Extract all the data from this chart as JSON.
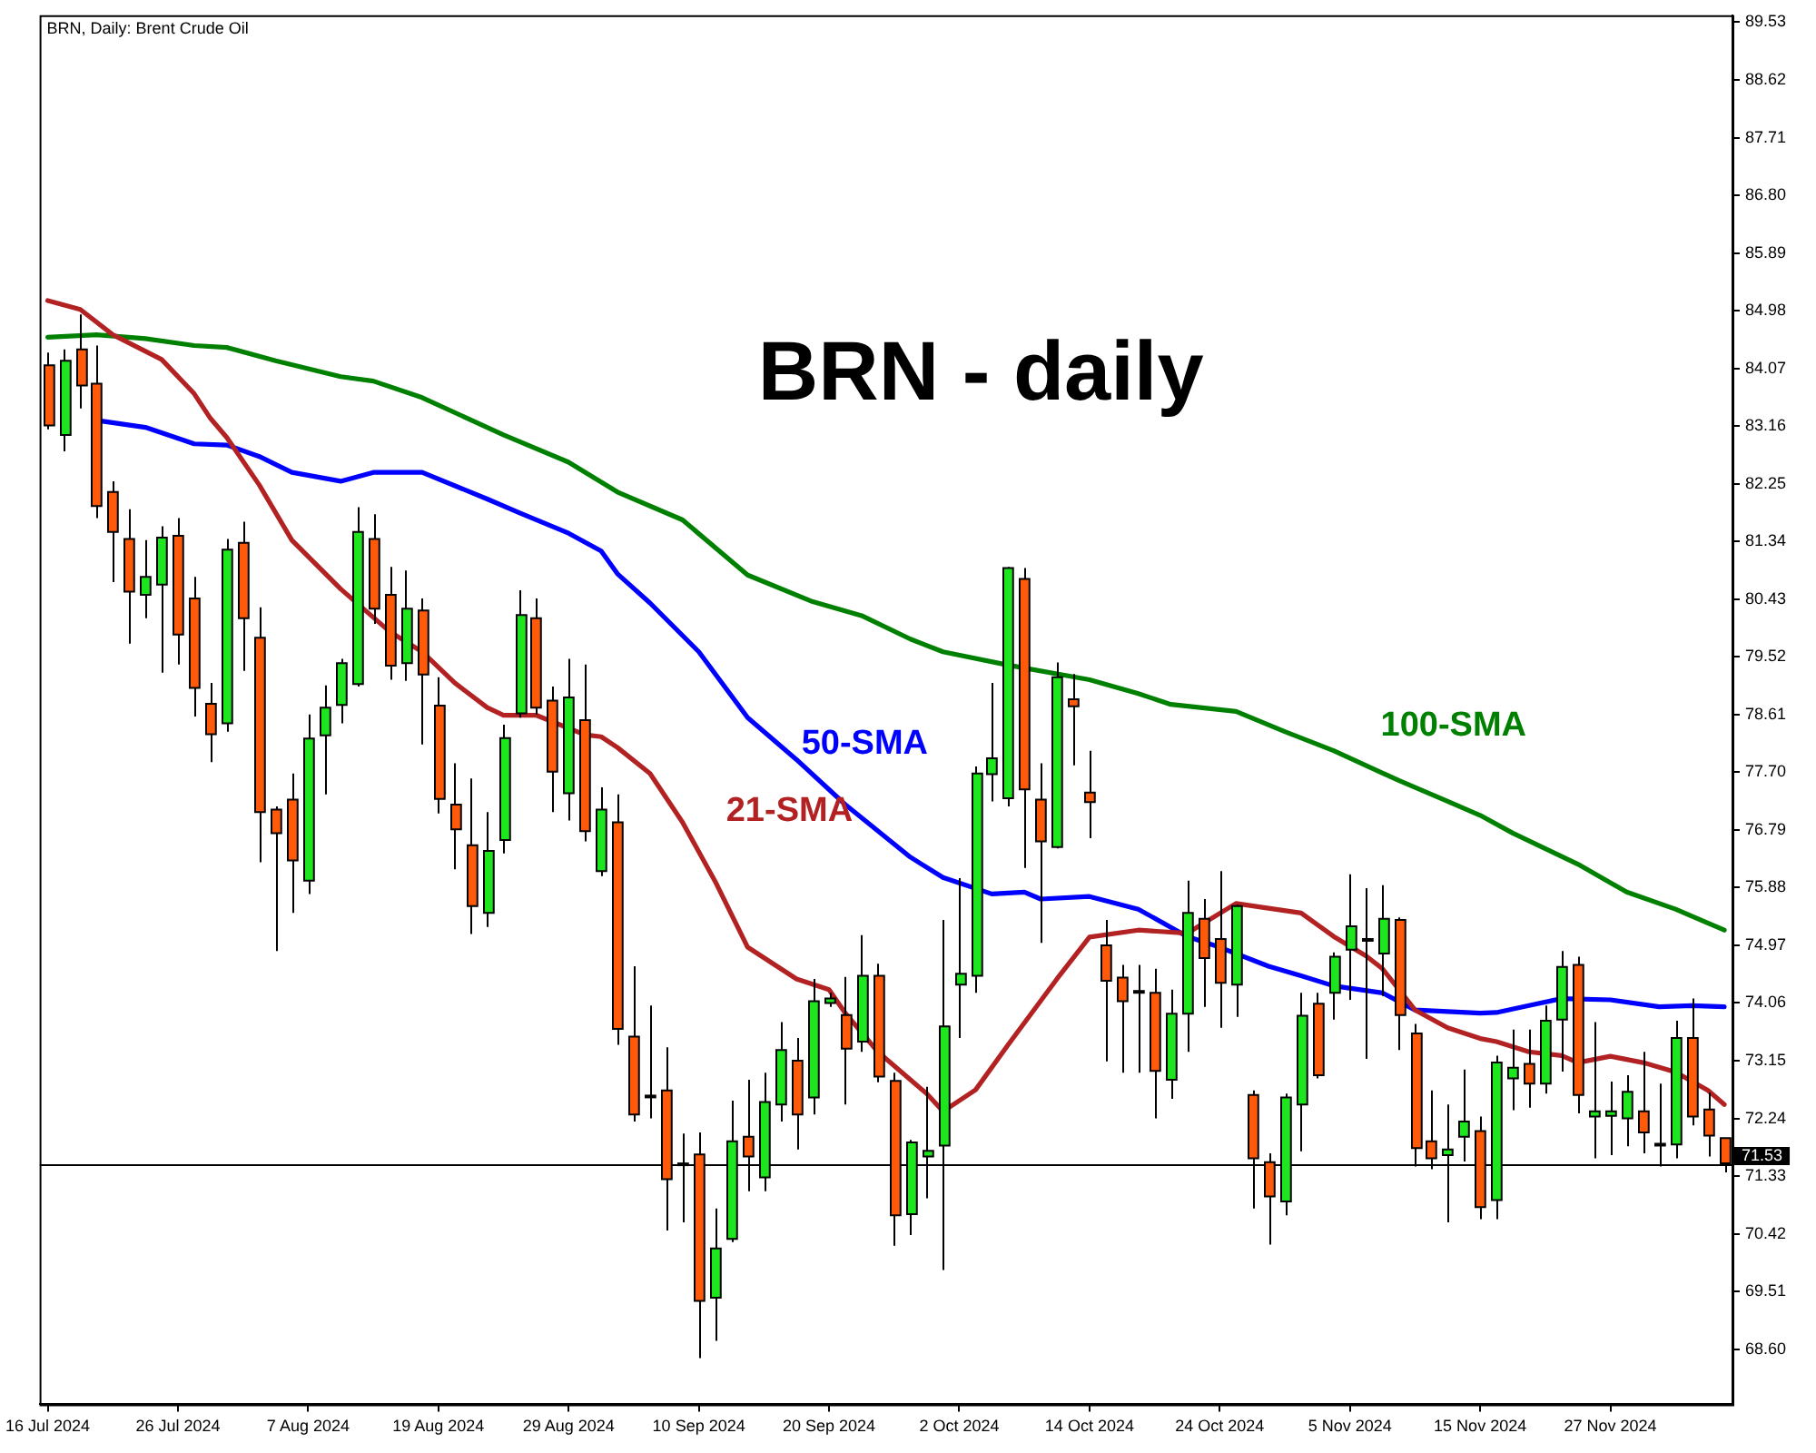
{
  "chart_data": {
    "type": "candlestick",
    "title": "BRN - daily",
    "subtitle": "BRN, Daily: Brent Crude Oil",
    "categories": [
      "16 Jul 2024",
      null,
      null,
      null,
      null,
      null,
      null,
      null,
      "26 Jul 2024",
      null,
      null,
      null,
      null,
      null,
      null,
      null,
      "7 Aug 2024",
      null,
      null,
      null,
      null,
      null,
      null,
      null,
      "19 Aug 2024",
      null,
      null,
      null,
      null,
      null,
      null,
      null,
      "29 Aug 2024",
      null,
      null,
      null,
      null,
      null,
      null,
      null,
      "10 Sep 2024",
      null,
      null,
      null,
      null,
      null,
      null,
      null,
      "20 Sep 2024",
      null,
      null,
      null,
      null,
      null,
      null,
      null,
      "2 Oct 2024",
      null,
      null,
      null,
      null,
      null,
      null,
      null,
      "14 Oct 2024",
      null,
      null,
      null,
      null,
      null,
      null,
      null,
      "24 Oct 2024",
      null,
      null,
      null,
      null,
      null,
      null,
      null,
      "5 Nov 2024",
      null,
      null,
      null,
      null,
      null,
      null,
      null,
      "15 Nov 2024",
      null,
      null,
      null,
      null,
      null,
      null,
      null,
      "27 Nov 2024",
      null,
      null,
      null,
      null,
      null,
      null,
      null
    ],
    "ohlc": [
      [
        84.12,
        84.32,
        83.11,
        83.17
      ],
      [
        83.02,
        84.37,
        82.76,
        84.19
      ],
      [
        84.37,
        84.92,
        83.44,
        83.8
      ],
      [
        83.83,
        84.43,
        81.71,
        81.9
      ],
      [
        82.12,
        82.29,
        80.7,
        81.49
      ],
      [
        81.38,
        81.85,
        79.73,
        80.55
      ],
      [
        80.5,
        81.36,
        80.13,
        80.78
      ],
      [
        80.66,
        81.58,
        79.27,
        81.4
      ],
      [
        81.43,
        81.71,
        79.4,
        79.87
      ],
      [
        80.44,
        80.78,
        78.58,
        79.03
      ],
      [
        78.78,
        79.11,
        77.86,
        78.3
      ],
      [
        78.47,
        81.38,
        78.34,
        81.21
      ],
      [
        81.32,
        81.65,
        79.3,
        80.13
      ],
      [
        79.82,
        80.3,
        76.28,
        77.07
      ],
      [
        77.11,
        77.16,
        74.88,
        76.74
      ],
      [
        77.27,
        77.68,
        75.48,
        76.31
      ],
      [
        75.99,
        78.61,
        75.78,
        78.23
      ],
      [
        78.28,
        79.07,
        77.35,
        78.72
      ],
      [
        78.76,
        79.49,
        78.47,
        79.42
      ],
      [
        79.09,
        81.88,
        79.05,
        81.49
      ],
      [
        81.38,
        81.77,
        80.04,
        80.28
      ],
      [
        80.5,
        80.94,
        79.16,
        79.38
      ],
      [
        79.42,
        80.88,
        79.14,
        80.28
      ],
      [
        80.25,
        80.44,
        78.14,
        79.24
      ],
      [
        78.75,
        79.2,
        77.05,
        77.28
      ],
      [
        77.19,
        77.84,
        76.17,
        76.8
      ],
      [
        76.55,
        77.6,
        75.15,
        75.59
      ],
      [
        75.48,
        77.07,
        75.26,
        76.46
      ],
      [
        76.63,
        78.45,
        76.42,
        78.24
      ],
      [
        78.63,
        80.57,
        78.56,
        80.18
      ],
      [
        80.13,
        80.44,
        78.61,
        78.72
      ],
      [
        78.83,
        79.05,
        77.07,
        77.71
      ],
      [
        77.37,
        79.49,
        76.94,
        78.88
      ],
      [
        78.52,
        79.4,
        76.61,
        76.77
      ],
      [
        76.14,
        77.46,
        76.06,
        77.11
      ],
      [
        76.91,
        77.35,
        73.4,
        73.65
      ],
      [
        73.53,
        74.64,
        72.19,
        72.3
      ],
      [
        72.6,
        74.02,
        72.24,
        72.59
      ],
      [
        72.68,
        73.36,
        70.47,
        71.28
      ],
      [
        71.53,
        72.0,
        70.6,
        71.52
      ],
      [
        71.67,
        72.02,
        68.46,
        69.36
      ],
      [
        69.41,
        70.82,
        68.73,
        70.19
      ],
      [
        70.34,
        72.52,
        70.29,
        71.88
      ],
      [
        71.95,
        72.85,
        71.09,
        71.64
      ],
      [
        71.31,
        72.96,
        71.09,
        72.5
      ],
      [
        72.46,
        73.76,
        72.19,
        73.32
      ],
      [
        73.15,
        73.51,
        71.75,
        72.3
      ],
      [
        72.57,
        74.44,
        72.3,
        74.09
      ],
      [
        74.06,
        74.22,
        74.0,
        74.13
      ],
      [
        73.87,
        74.47,
        72.46,
        73.34
      ],
      [
        73.45,
        75.13,
        73.29,
        74.49
      ],
      [
        74.49,
        74.68,
        72.81,
        72.9
      ],
      [
        72.83,
        72.96,
        70.23,
        70.71
      ],
      [
        70.73,
        71.9,
        70.4,
        71.86
      ],
      [
        71.64,
        72.74,
        70.98,
        71.73
      ],
      [
        71.81,
        75.37,
        69.85,
        73.69
      ],
      [
        74.35,
        76.03,
        73.51,
        74.52
      ],
      [
        74.49,
        77.79,
        74.22,
        77.68
      ],
      [
        77.67,
        79.11,
        77.24,
        77.92
      ],
      [
        77.29,
        80.94,
        77.16,
        80.92
      ],
      [
        80.75,
        80.92,
        76.19,
        77.43
      ],
      [
        77.27,
        77.84,
        75.01,
        76.61
      ],
      [
        76.52,
        79.43,
        76.5,
        79.2
      ],
      [
        78.85,
        79.25,
        77.81,
        78.74
      ],
      [
        77.38,
        78.04,
        76.66,
        77.23
      ],
      [
        74.97,
        75.37,
        73.14,
        74.41
      ],
      [
        74.46,
        74.66,
        72.96,
        74.09
      ],
      [
        74.25,
        74.66,
        72.96,
        74.24
      ],
      [
        74.22,
        74.6,
        72.24,
        72.99
      ],
      [
        72.85,
        74.27,
        72.55,
        73.89
      ],
      [
        73.89,
        75.99,
        73.29,
        75.48
      ],
      [
        75.39,
        75.7,
        74.0,
        74.77
      ],
      [
        75.07,
        76.14,
        73.67,
        74.38
      ],
      [
        74.35,
        75.61,
        73.84,
        75.59
      ],
      [
        72.61,
        72.68,
        70.82,
        71.61
      ],
      [
        71.55,
        71.69,
        70.25,
        71.01
      ],
      [
        70.93,
        72.63,
        70.71,
        72.57
      ],
      [
        72.46,
        74.22,
        71.72,
        73.86
      ],
      [
        74.05,
        74.22,
        72.87,
        72.92
      ],
      [
        74.22,
        74.86,
        73.8,
        74.79
      ],
      [
        74.9,
        76.09,
        74.11,
        75.27
      ],
      [
        75.07,
        75.87,
        73.18,
        75.06
      ],
      [
        74.84,
        75.92,
        74.17,
        75.39
      ],
      [
        75.37,
        75.41,
        73.32,
        73.87
      ],
      [
        73.58,
        73.73,
        71.48,
        71.77
      ],
      [
        71.88,
        72.68,
        71.44,
        71.61
      ],
      [
        71.66,
        72.46,
        70.6,
        71.75
      ],
      [
        71.95,
        73.01,
        71.56,
        72.19
      ],
      [
        72.04,
        72.27,
        70.65,
        70.84
      ],
      [
        70.95,
        73.23,
        70.65,
        73.12
      ],
      [
        72.87,
        73.64,
        72.37,
        73.04
      ],
      [
        73.1,
        73.64,
        72.41,
        72.79
      ],
      [
        72.79,
        74.02,
        72.63,
        73.78
      ],
      [
        73.8,
        74.88,
        72.98,
        74.63
      ],
      [
        74.66,
        74.79,
        72.32,
        72.61
      ],
      [
        72.27,
        73.76,
        71.61,
        72.35
      ],
      [
        72.28,
        72.82,
        71.66,
        72.35
      ],
      [
        72.24,
        72.92,
        71.8,
        72.66
      ],
      [
        72.35,
        73.29,
        71.69,
        72.02
      ],
      [
        71.84,
        72.79,
        71.48,
        71.83
      ],
      [
        71.83,
        73.78,
        71.61,
        73.51
      ],
      [
        73.51,
        74.13,
        72.13,
        72.27
      ],
      [
        72.38,
        72.65,
        71.64,
        71.97
      ],
      [
        71.93,
        71.93,
        71.39,
        71.53
      ]
    ],
    "colors": [
      "#ff5a0a",
      "#1ee61e",
      "#ff5a0a",
      "#ff5a0a",
      "#ff5a0a",
      "#ff5a0a",
      "#1ee61e",
      "#1ee61e",
      "#ff5a0a",
      "#ff5a0a",
      "#ff5a0a",
      "#1ee61e",
      "#ff5a0a",
      "#ff5a0a",
      "#ff5a0a",
      "#ff5a0a",
      "#1ee61e",
      "#1ee61e",
      "#1ee61e",
      "#1ee61e",
      "#ff5a0a",
      "#ff5a0a",
      "#1ee61e",
      "#ff5a0a",
      "#ff5a0a",
      "#ff5a0a",
      "#ff5a0a",
      "#1ee61e",
      "#1ee61e",
      "#1ee61e",
      "#ff5a0a",
      "#ff5a0a",
      "#1ee61e",
      "#ff5a0a",
      "#1ee61e",
      "#ff5a0a",
      "#ff5a0a",
      "#ff5a0a",
      "#ff5a0a",
      "#ff5a0a",
      "#ff5a0a",
      "#1ee61e",
      "#1ee61e",
      "#ff5a0a",
      "#1ee61e",
      "#1ee61e",
      "#ff5a0a",
      "#1ee61e",
      "#1ee61e",
      "#ff5a0a",
      "#1ee61e",
      "#ff5a0a",
      "#ff5a0a",
      "#1ee61e",
      "#1ee61e",
      "#1ee61e",
      "#1ee61e",
      "#1ee61e",
      "#1ee61e",
      "#1ee61e",
      "#ff5a0a",
      "#ff5a0a",
      "#1ee61e",
      "#ff5a0a",
      "#ff5a0a",
      "#ff5a0a",
      "#ff5a0a",
      "#ff5a0a",
      "#ff5a0a",
      "#1ee61e",
      "#1ee61e",
      "#ff5a0a",
      "#ff5a0a",
      "#1ee61e",
      "#ff5a0a",
      "#ff5a0a",
      "#1ee61e",
      "#1ee61e",
      "#ff5a0a",
      "#1ee61e",
      "#1ee61e",
      "#ff5a0a",
      "#1ee61e",
      "#ff5a0a",
      "#ff5a0a",
      "#ff5a0a",
      "#1ee61e",
      "#1ee61e",
      "#ff5a0a",
      "#1ee61e",
      "#1ee61e",
      "#ff5a0a",
      "#1ee61e",
      "#1ee61e",
      "#ff5a0a",
      "#1ee61e",
      "#1ee61e",
      "#1ee61e",
      "#ff5a0a",
      "#ff5a0a",
      "#1ee61e",
      "#ff5a0a",
      "#ff5a0a",
      "#ff5a0a"
    ],
    "series": [
      {
        "name": "21-SMA",
        "type": "line",
        "color": "#b22222",
        "values": [
          85.14,
          null,
          85.0,
          null,
          84.6,
          null,
          null,
          84.21,
          null,
          83.67,
          83.28,
          82.98,
          null,
          82.23,
          null,
          81.36,
          null,
          null,
          80.59,
          null,
          null,
          79.92,
          null,
          79.6,
          null,
          79.11,
          null,
          78.72,
          78.6,
          null,
          78.6,
          null,
          null,
          78.29,
          78.26,
          78.09,
          null,
          77.68,
          null,
          76.91,
          null,
          75.98,
          null,
          74.94,
          null,
          null,
          74.44,
          null,
          74.27,
          73.9,
          null,
          73.29,
          null,
          72.85,
          72.63,
          72.35,
          null,
          72.69,
          null,
          73.4,
          null,
          null,
          74.44,
          null,
          75.1,
          null,
          null,
          75.21,
          null,
          null,
          75.16,
          null,
          null,
          75.63,
          null,
          null,
          null,
          75.48,
          null,
          75.11,
          null,
          74.8,
          74.6,
          null,
          73.95,
          null,
          73.67,
          null,
          73.5,
          73.45,
          null,
          73.29,
          null,
          73.23,
          73.12,
          null,
          73.22,
          null,
          73.12,
          null,
          72.97,
          null,
          72.68,
          72.46
        ]
      },
      {
        "name": "50-SMA",
        "type": "line",
        "color": "#0000ff",
        "values": [
          null,
          null,
          null,
          83.25,
          null,
          null,
          83.14,
          null,
          null,
          82.88,
          null,
          82.86,
          null,
          82.68,
          null,
          82.43,
          null,
          null,
          82.29,
          null,
          82.43,
          null,
          null,
          82.43,
          null,
          null,
          null,
          82.01,
          null,
          81.79,
          null,
          null,
          81.47,
          null,
          81.19,
          80.83,
          null,
          80.37,
          null,
          null,
          79.6,
          null,
          null,
          78.56,
          null,
          null,
          77.9,
          null,
          null,
          77.19,
          null,
          null,
          null,
          76.36,
          null,
          76.04,
          null,
          null,
          75.78,
          null,
          75.81,
          75.7,
          null,
          null,
          75.74,
          null,
          null,
          75.54,
          null,
          null,
          75.11,
          null,
          74.94,
          null,
          null,
          74.64,
          null,
          74.49,
          null,
          74.33,
          null,
          null,
          74.22,
          null,
          73.95,
          null,
          null,
          null,
          73.9,
          73.91,
          null,
          74.02,
          null,
          74.13,
          null,
          null,
          74.11,
          null,
          null,
          74.0,
          null,
          74.02,
          null,
          74.0
        ]
      },
      {
        "name": "100-SMA",
        "type": "line",
        "color": "#008000",
        "values": [
          84.56,
          null,
          null,
          84.6,
          null,
          null,
          84.54,
          null,
          null,
          84.43,
          null,
          84.4,
          null,
          null,
          84.19,
          null,
          null,
          null,
          83.94,
          null,
          83.87,
          null,
          null,
          83.61,
          null,
          null,
          null,
          null,
          83.02,
          null,
          null,
          null,
          82.59,
          null,
          null,
          82.12,
          null,
          null,
          null,
          81.68,
          null,
          null,
          null,
          80.81,
          null,
          null,
          null,
          80.39,
          null,
          null,
          80.17,
          null,
          null,
          79.8,
          null,
          79.6,
          null,
          null,
          null,
          79.39,
          null,
          null,
          null,
          null,
          79.16,
          null,
          null,
          78.94,
          null,
          78.77,
          null,
          null,
          null,
          78.66,
          null,
          null,
          78.34,
          null,
          null,
          78.04,
          null,
          null,
          null,
          77.57,
          null,
          null,
          77.24,
          null,
          77.02,
          null,
          76.74,
          null,
          null,
          null,
          76.25,
          null,
          null,
          75.81,
          null,
          null,
          75.54,
          null,
          null,
          75.21
        ]
      }
    ],
    "ylim": [
      67.73,
      89.64
    ],
    "yticks": [
      89.53,
      88.62,
      87.71,
      {
        "value": 86.8,
        "label": "86.80"
      },
      85.89,
      84.98,
      84.07,
      83.16,
      82.25,
      81.34,
      80.43,
      79.52,
      78.61,
      {
        "value": 77.7,
        "label": "77.70"
      },
      76.79,
      75.88,
      74.97,
      74.06,
      73.15,
      72.24,
      71.33,
      70.42,
      69.51,
      {
        "value": 68.6,
        "label": "68.60"
      }
    ],
    "ref_lines": [
      {
        "axis": "y",
        "value": 71.53,
        "label": "71.53",
        "color": "#000000"
      }
    ],
    "grid": false,
    "legend": false,
    "marker": "none"
  }
}
